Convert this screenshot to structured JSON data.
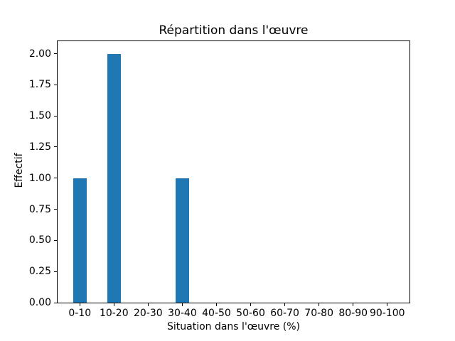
{
  "chart_data": {
    "type": "bar",
    "title": "Répartition dans l'œuvre",
    "xlabel": "Situation dans l'œuvre (%)",
    "ylabel": "Effectif",
    "categories": [
      "0-10",
      "10-20",
      "20-30",
      "30-40",
      "40-50",
      "50-60",
      "60-70",
      "70-80",
      "80-90",
      "90-100"
    ],
    "values": [
      1,
      2,
      0,
      1,
      0,
      0,
      0,
      0,
      0,
      0
    ],
    "ytick_labels": [
      "0.00",
      "0.25",
      "0.50",
      "0.75",
      "1.00",
      "1.25",
      "1.50",
      "1.75",
      "2.00"
    ],
    "ylim": [
      0,
      2.1
    ],
    "bar_color": "#1f77b4",
    "bar_width_units": 0.4,
    "x_axis_units_total": 10.3,
    "x_first_center_offset_units": 0.65,
    "grid": false,
    "legend": "none"
  }
}
